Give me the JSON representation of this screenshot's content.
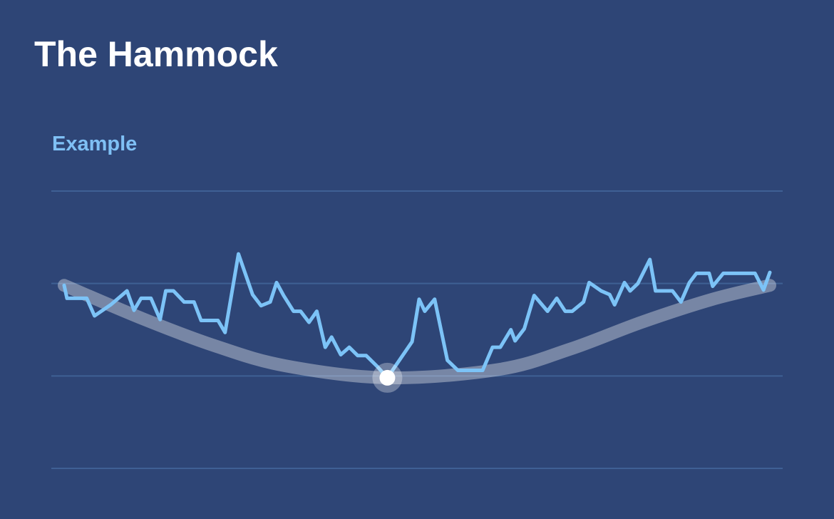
{
  "chart_data": {
    "type": "line",
    "title": "The Hammock",
    "subtitle": "Example",
    "xlim": [
      0,
      100
    ],
    "ylim": [
      0,
      3
    ],
    "yticks": [
      0,
      1,
      2,
      3
    ],
    "grid": true,
    "series": [
      {
        "color": "#7cc3f7",
        "x": [
          0,
          0.4,
          3.2,
          4.3,
          6.6,
          8.9,
          9.9,
          10.9,
          12.3,
          13.6,
          14.4,
          15.5,
          17.0,
          18.4,
          19.4,
          21.8,
          22.8,
          24.7,
          26.7,
          27.9,
          29.2,
          30.1,
          31.1,
          32.5,
          33.5,
          34.7,
          35.8,
          37.0,
          37.9,
          39.2,
          40.4,
          41.6,
          42.8,
          44.4,
          45.8,
          49.3,
          50.3,
          51.1,
          52.5,
          54.3,
          55.8,
          59.3,
          60.7,
          61.8,
          63.3,
          63.9,
          65.2,
          66.6,
          68.5,
          69.8,
          71.0,
          72.0,
          73.6,
          74.4,
          76.1,
          77.3,
          78.0,
          79.4,
          80.2,
          81.3,
          83.0,
          83.8,
          86.2,
          87.4,
          88.6,
          89.6,
          91.4,
          91.9,
          93.4,
          97.9,
          99.1,
          100
        ],
        "values": [
          1.98,
          1.84,
          1.84,
          1.65,
          1.77,
          1.92,
          1.71,
          1.84,
          1.84,
          1.61,
          1.92,
          1.92,
          1.8,
          1.8,
          1.6,
          1.6,
          1.47,
          2.32,
          1.88,
          1.76,
          1.8,
          2.01,
          1.87,
          1.7,
          1.7,
          1.58,
          1.7,
          1.31,
          1.42,
          1.23,
          1.31,
          1.22,
          1.22,
          1.1,
          0.98,
          1.37,
          1.83,
          1.7,
          1.83,
          1.17,
          1.06,
          1.06,
          1.31,
          1.31,
          1.5,
          1.38,
          1.51,
          1.87,
          1.7,
          1.84,
          1.7,
          1.7,
          1.8,
          2.01,
          1.92,
          1.88,
          1.77,
          2.01,
          1.92,
          2.0,
          2.26,
          1.92,
          1.92,
          1.8,
          2.01,
          2.11,
          2.11,
          1.97,
          2.11,
          2.11,
          1.93,
          2.12
        ]
      },
      {
        "color": "rgba(255,255,255,0.35)",
        "smooth": true,
        "x": [
          0,
          11.1,
          21.2,
          31.3,
          45.8,
          61.6,
          71.7,
          81.8,
          91.9,
          100
        ],
        "values": [
          1.98,
          1.62,
          1.33,
          1.11,
          0.98,
          1.07,
          1.29,
          1.58,
          1.83,
          1.98
        ]
      }
    ],
    "marker": {
      "x": 45.8,
      "y": 0.98
    }
  }
}
